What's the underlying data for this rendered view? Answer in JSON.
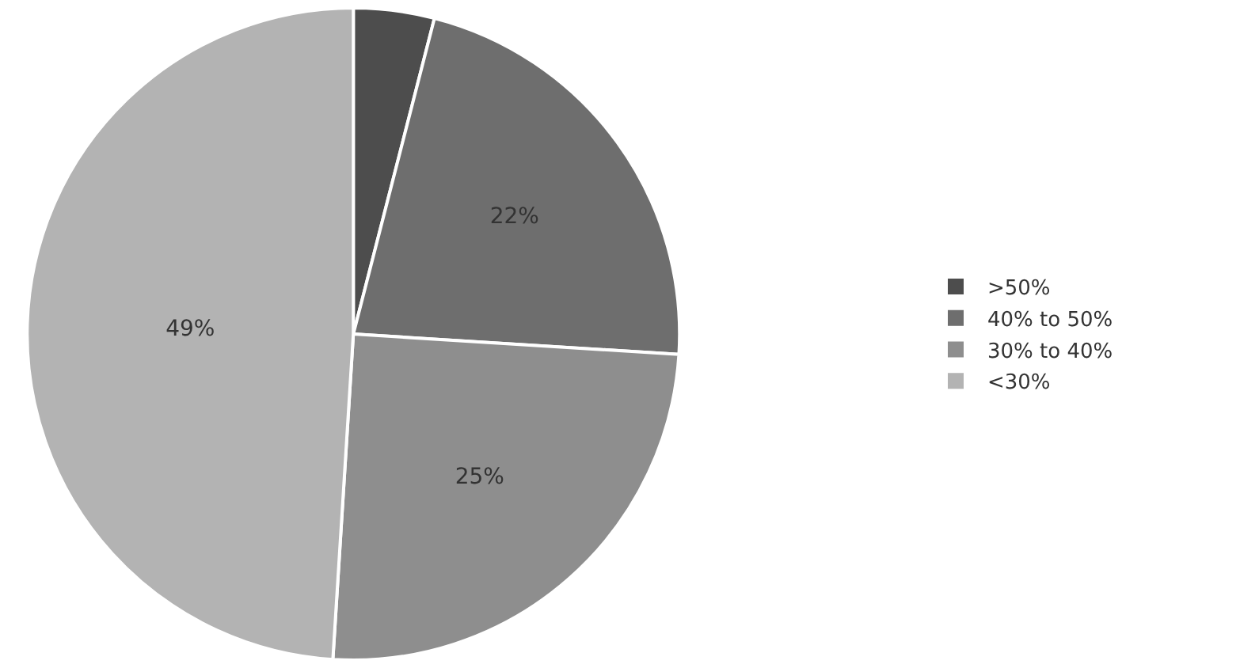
{
  "chart_data": {
    "type": "pie",
    "categories": [
      ">50%",
      "40% to 50%",
      "30% to 40%",
      "<30%"
    ],
    "values": [
      4,
      22,
      25,
      49
    ],
    "colors": [
      "#4d4d4d",
      "#6e6e6e",
      "#8e8e8e",
      "#b3b3b3"
    ],
    "value_labels": [
      null,
      "22%",
      "25%",
      "49%"
    ],
    "legend": "right"
  }
}
